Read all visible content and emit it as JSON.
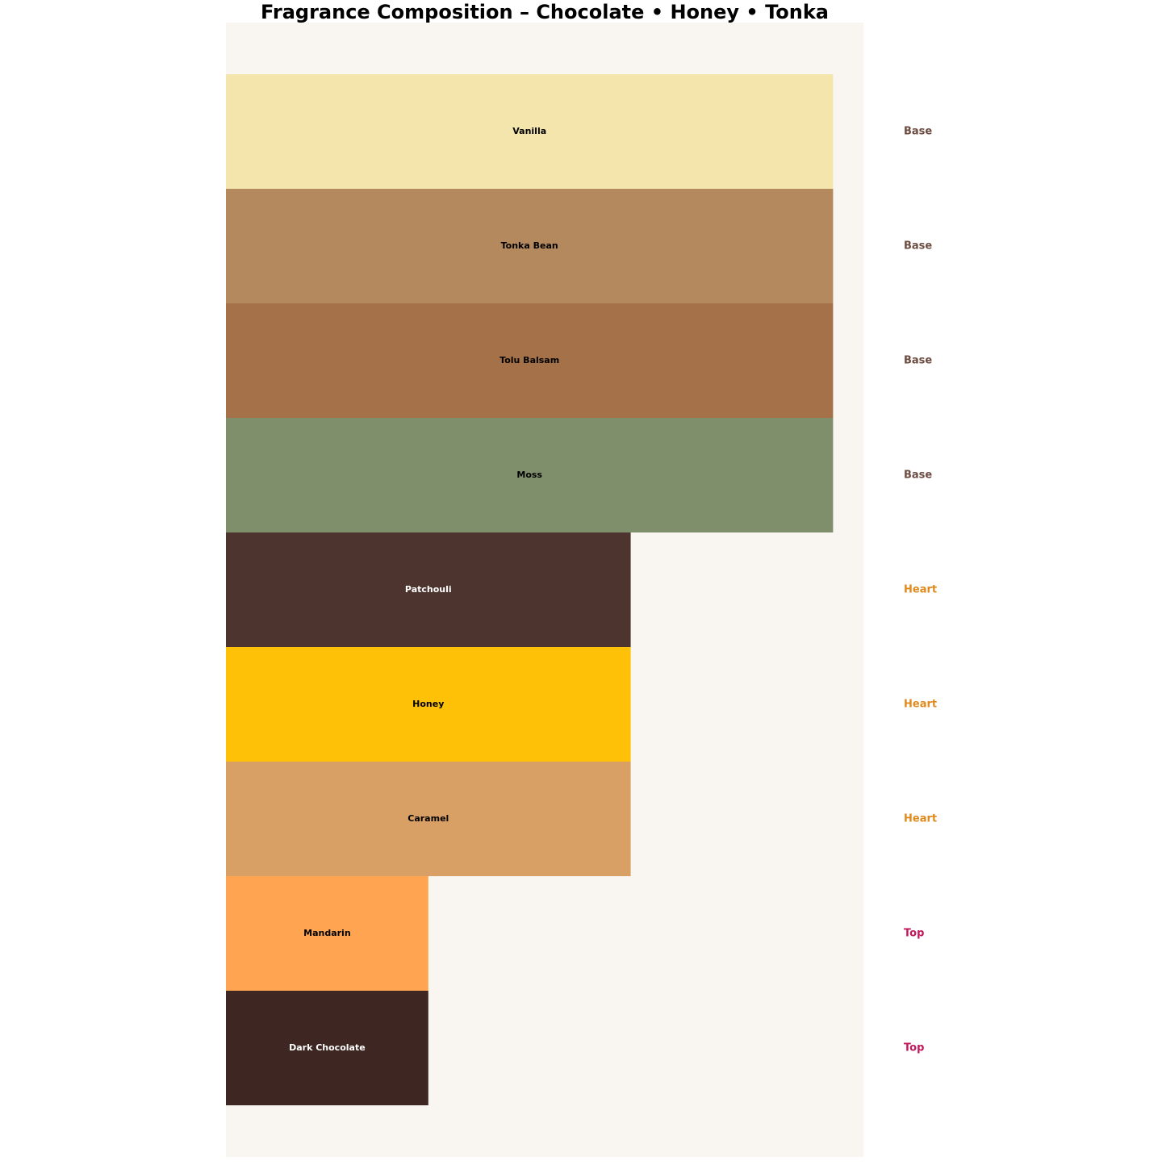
{
  "chart_data": {
    "type": "bar",
    "orientation": "horizontal",
    "title": "Fragrance Composition – Chocolate • Honey • Tonka",
    "categories": [
      "Vanilla",
      "Tonka Bean",
      "Tolu Balsam",
      "Moss",
      "Patchouli",
      "Honey",
      "Caramel",
      "Mandarin",
      "Dark Chocolate"
    ],
    "values": [
      3,
      3,
      3,
      3,
      2,
      2,
      2,
      1,
      1
    ],
    "colors": [
      "#f3e5ab",
      "#b5895e",
      "#a47149",
      "#7f8f6b",
      "#4e342e",
      "#ffc107",
      "#d9a066",
      "#ffa552",
      "#3e2723"
    ],
    "tiers": [
      "Base",
      "Base",
      "Base",
      "Base",
      "Heart",
      "Heart",
      "Heart",
      "Top",
      "Top"
    ],
    "tier_colors": {
      "Base": "#6d4c41",
      "Heart": "#e08a1e",
      "Top": "#c2185b"
    },
    "xlim": [
      0,
      3.15
    ]
  }
}
